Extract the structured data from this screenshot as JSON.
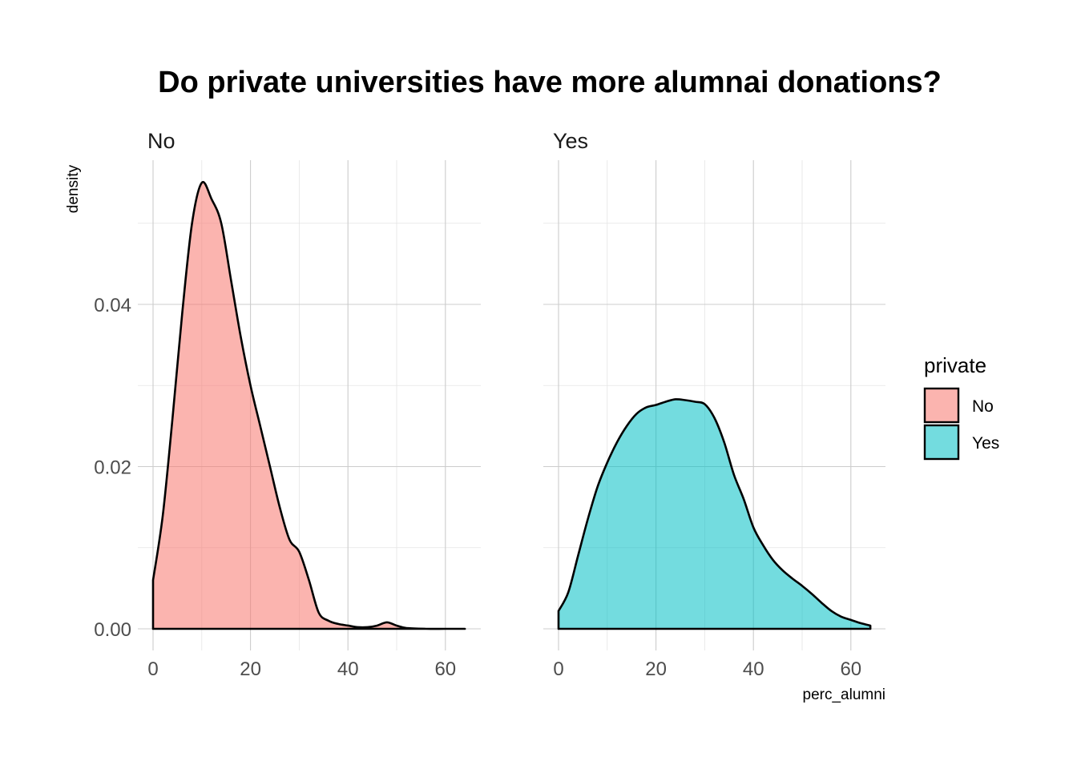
{
  "chart_data": {
    "type": "area",
    "title": "Do private universities have more alumnai donations?",
    "xlabel": "perc_alumni",
    "ylabel": "density",
    "xlim": [
      0,
      64
    ],
    "ylim": [
      0,
      0.055
    ],
    "x_ticks": [
      0,
      20,
      40,
      60
    ],
    "x_tick_labels": [
      "0",
      "20",
      "40",
      "60"
    ],
    "y_ticks": [
      0,
      0.02,
      0.04
    ],
    "y_tick_labels": [
      "0.00",
      "0.02",
      "0.04"
    ],
    "legend": {
      "title": "private",
      "position": "right",
      "entries": [
        {
          "label": "No",
          "color": "#F8766D"
        },
        {
          "label": "Yes",
          "color": "#00BFC4"
        }
      ]
    },
    "fill_alpha": 0.55,
    "panels": [
      {
        "strip": "No",
        "color": "#F8766D",
        "series": [
          [
            0,
            0.006
          ],
          [
            2,
            0.014
          ],
          [
            4,
            0.026
          ],
          [
            6,
            0.039
          ],
          [
            8,
            0.05
          ],
          [
            10,
            0.055
          ],
          [
            12,
            0.053
          ],
          [
            14,
            0.05
          ],
          [
            16,
            0.043
          ],
          [
            18,
            0.036
          ],
          [
            20,
            0.03
          ],
          [
            22,
            0.025
          ],
          [
            24,
            0.02
          ],
          [
            26,
            0.015
          ],
          [
            28,
            0.011
          ],
          [
            30,
            0.0095
          ],
          [
            32,
            0.006
          ],
          [
            34,
            0.002
          ],
          [
            36,
            0.001
          ],
          [
            38,
            0.0006
          ],
          [
            40,
            0.0004
          ],
          [
            42,
            0.0002
          ],
          [
            44,
            0.0002
          ],
          [
            46,
            0.0004
          ],
          [
            48,
            0.0008
          ],
          [
            50,
            0.0004
          ],
          [
            52,
            0.0001
          ],
          [
            56,
            0.0
          ],
          [
            60,
            0.0
          ],
          [
            64,
            0.0
          ]
        ]
      },
      {
        "strip": "Yes",
        "color": "#00BFC4",
        "series": [
          [
            0,
            0.0022
          ],
          [
            2,
            0.0045
          ],
          [
            4,
            0.009
          ],
          [
            6,
            0.0135
          ],
          [
            8,
            0.0175
          ],
          [
            10,
            0.0205
          ],
          [
            12,
            0.023
          ],
          [
            14,
            0.025
          ],
          [
            16,
            0.0265
          ],
          [
            18,
            0.0273
          ],
          [
            20,
            0.0276
          ],
          [
            22,
            0.028
          ],
          [
            24,
            0.0283
          ],
          [
            26,
            0.0282
          ],
          [
            28,
            0.028
          ],
          [
            30,
            0.0277
          ],
          [
            32,
            0.026
          ],
          [
            34,
            0.023
          ],
          [
            36,
            0.019
          ],
          [
            38,
            0.016
          ],
          [
            40,
            0.0125
          ],
          [
            42,
            0.0103
          ],
          [
            44,
            0.0085
          ],
          [
            46,
            0.0072
          ],
          [
            48,
            0.0062
          ],
          [
            50,
            0.0053
          ],
          [
            52,
            0.0043
          ],
          [
            54,
            0.0032
          ],
          [
            56,
            0.0022
          ],
          [
            58,
            0.0015
          ],
          [
            60,
            0.0011
          ],
          [
            62,
            0.0007
          ],
          [
            64,
            0.0004
          ]
        ]
      }
    ]
  }
}
